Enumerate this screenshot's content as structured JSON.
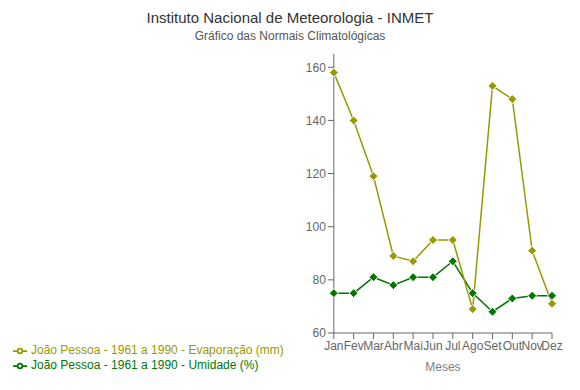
{
  "chart_data": {
    "type": "line",
    "title": "Instituto Nacional de Meteorologia - INMET",
    "subtitle": "Gráfico das Normais Climatológicas",
    "xlabel": "Meses",
    "categories": [
      "Jan",
      "Fev",
      "Mar",
      "Abr",
      "Mai",
      "Jun",
      "Jul",
      "Ago",
      "Set",
      "Out",
      "Nov",
      "Dez"
    ],
    "series": [
      {
        "name": "João Pessoa - 1961 a 1990 - Umidade (%)",
        "color": "#007700",
        "marker": "diamond",
        "values": [
          75,
          75,
          81,
          78,
          81,
          81,
          87,
          75,
          68,
          73,
          74,
          74
        ]
      },
      {
        "name": "João Pessoa - 1961 a 1990 - Evaporação (mm)",
        "color": "#999900",
        "marker": "diamond",
        "values": [
          158,
          140,
          119,
          89,
          87,
          95,
          95,
          69,
          153,
          148,
          91,
          71
        ]
      }
    ],
    "ylim": [
      60,
      165
    ],
    "yticks": [
      60,
      80,
      100,
      120,
      140,
      160
    ],
    "grid": false,
    "legend": "lower left"
  }
}
